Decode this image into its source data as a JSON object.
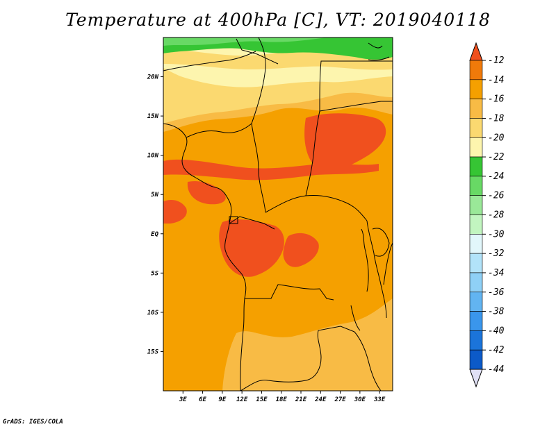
{
  "title": "Temperature at 400hPa [C], VT: 2019040118",
  "credit": "GrADS: IGES/COLA",
  "map": {
    "lat_range": [
      -20,
      25
    ],
    "lon_range": [
      0,
      35
    ],
    "lat_ticks": [
      {
        "value": 20,
        "label": "20N"
      },
      {
        "value": 15,
        "label": "15N"
      },
      {
        "value": 10,
        "label": "10N"
      },
      {
        "value": 5,
        "label": "5N"
      },
      {
        "value": 0,
        "label": "EQ"
      },
      {
        "value": -5,
        "label": "5S"
      },
      {
        "value": -10,
        "label": "10S"
      },
      {
        "value": -15,
        "label": "15S"
      }
    ],
    "lon_ticks": [
      {
        "value": 3,
        "label": "3E"
      },
      {
        "value": 6,
        "label": "6E"
      },
      {
        "value": 9,
        "label": "9E"
      },
      {
        "value": 12,
        "label": "12E"
      },
      {
        "value": 15,
        "label": "15E"
      },
      {
        "value": 18,
        "label": "18E"
      },
      {
        "value": 21,
        "label": "21E"
      },
      {
        "value": 24,
        "label": "24E"
      },
      {
        "value": 27,
        "label": "27E"
      },
      {
        "value": 30,
        "label": "30E"
      },
      {
        "value": 33,
        "label": "33E"
      }
    ]
  },
  "colorbar": {
    "labels": [
      "-12",
      "-14",
      "-16",
      "-18",
      "-20",
      "-22",
      "-24",
      "-26",
      "-28",
      "-30",
      "-32",
      "-34",
      "-36",
      "-38",
      "-40",
      "-42",
      "-44"
    ],
    "colors": [
      "#f0501e",
      "#f07a0a",
      "#f5a000",
      "#f8bb45",
      "#fbd970",
      "#fdf5ae",
      "#36c534",
      "#68d965",
      "#9ae898",
      "#c2f5c0",
      "#e2f7fb",
      "#b2e3f9",
      "#8fd0f6",
      "#62b4f1",
      "#3a96ec",
      "#1b74da",
      "#0c5ac8",
      "#0a1e80",
      "#e0e0f5"
    ]
  },
  "field_colors": {
    "red": "#f0501e",
    "orange": "#f5a000",
    "lightorange": "#f8bb45",
    "yellow": "#fbd970",
    "paleyellow": "#fdf5ae",
    "green": "#36c534",
    "lightgreen": "#68d965"
  }
}
